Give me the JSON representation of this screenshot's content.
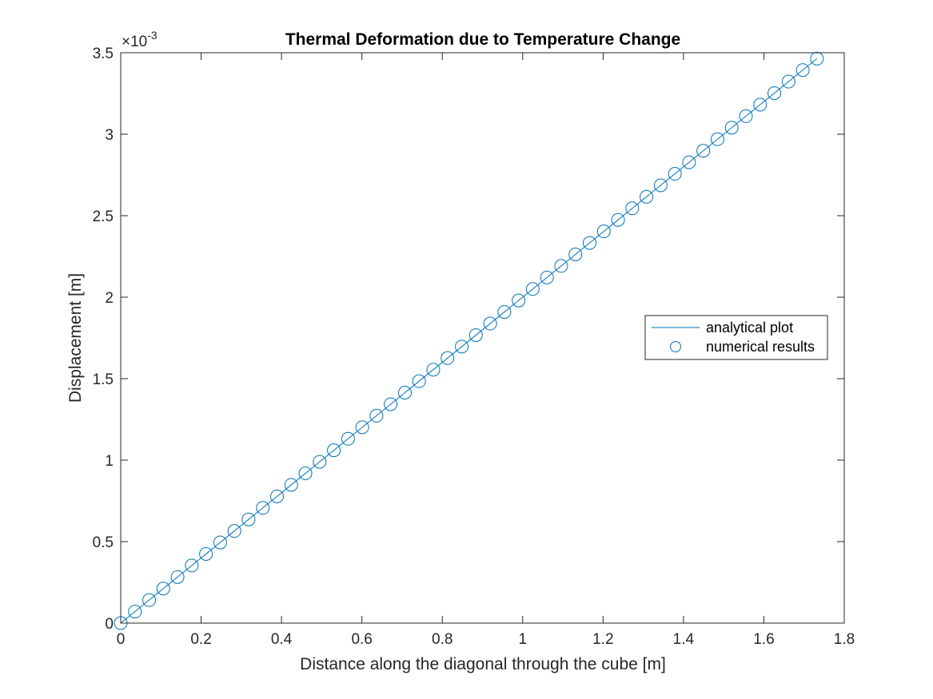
{
  "chart_data": {
    "type": "line",
    "title": "Thermal Deformation due to Temperature Change",
    "xlabel": "Distance along the diagonal through the cube [m]",
    "ylabel": "Displacement [m]",
    "y_exponent_label": "×10",
    "y_exponent_power": "-3",
    "xlim": [
      0,
      1.8
    ],
    "ylim": [
      0,
      0.0035
    ],
    "x_ticks": [
      0,
      0.2,
      0.4,
      0.6,
      0.8,
      1.0,
      1.2,
      1.4,
      1.6,
      1.8
    ],
    "x_tick_labels": [
      "0",
      "0.2",
      "0.4",
      "0.6",
      "0.8",
      "1",
      "1.2",
      "1.4",
      "1.6",
      "1.8"
    ],
    "y_ticks": [
      0,
      0.0005,
      0.001,
      0.0015,
      0.002,
      0.0025,
      0.003,
      0.0035
    ],
    "y_tick_labels": [
      "0",
      "0.5",
      "1",
      "1.5",
      "2",
      "2.5",
      "3",
      "3.5"
    ],
    "grid": false,
    "legend_position": "right",
    "series": [
      {
        "name": "analytical plot",
        "style": "line",
        "color": "#0072BD",
        "x": [
          0,
          1.7321
        ],
        "y": [
          0,
          0.003464
        ]
      },
      {
        "name": "numerical results",
        "style": "markers-circle",
        "color": "#0072BD",
        "x": [
          0,
          0.0353,
          0.0707,
          0.106,
          0.1414,
          0.1767,
          0.2121,
          0.2474,
          0.2828,
          0.3181,
          0.3535,
          0.3888,
          0.4242,
          0.4595,
          0.4949,
          0.5302,
          0.5656,
          0.6009,
          0.6363,
          0.6716,
          0.707,
          0.7423,
          0.7777,
          0.813,
          0.8484,
          0.8837,
          0.9191,
          0.9544,
          0.9898,
          1.0251,
          1.0605,
          1.0958,
          1.1312,
          1.1665,
          1.2019,
          1.2372,
          1.2726,
          1.3079,
          1.3433,
          1.3786,
          1.414,
          1.4493,
          1.4847,
          1.52,
          1.5554,
          1.5907,
          1.6261,
          1.6614,
          1.6968,
          1.7321
        ],
        "y": [
          0,
          7.07e-05,
          0.0001414,
          0.000212,
          0.0002827,
          0.0003534,
          0.0004241,
          0.0004948,
          0.0005655,
          0.0006362,
          0.0007069,
          0.0007776,
          0.0008483,
          0.000919,
          0.0009897,
          0.0010604,
          0.0011311,
          0.0012018,
          0.0012725,
          0.0013432,
          0.0014139,
          0.0014846,
          0.0015553,
          0.001626,
          0.0016967,
          0.0017674,
          0.0018381,
          0.0019088,
          0.0019795,
          0.0020502,
          0.0021209,
          0.0021916,
          0.0022623,
          0.002333,
          0.0024037,
          0.0024744,
          0.0025451,
          0.0026158,
          0.0026865,
          0.0027572,
          0.0028279,
          0.0028986,
          0.0029693,
          0.00304,
          0.0031107,
          0.0031814,
          0.0032521,
          0.0033228,
          0.0033935,
          0.003464
        ]
      }
    ]
  }
}
